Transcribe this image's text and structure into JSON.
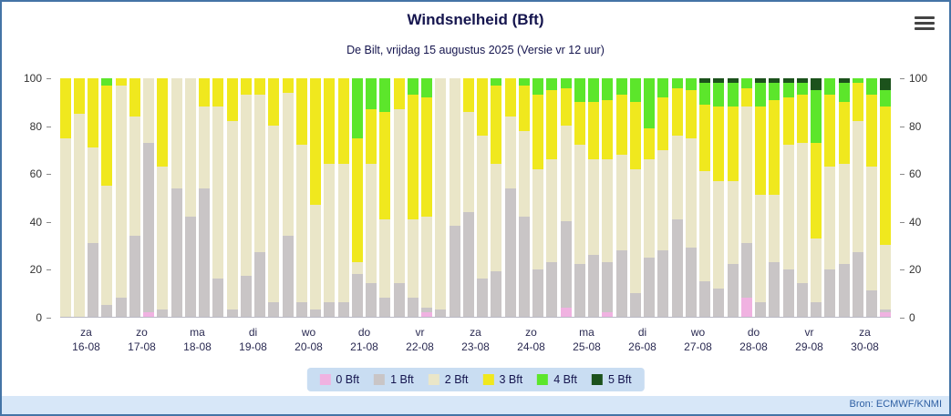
{
  "footer": {
    "source": "Bron: ECMWF/KNMI"
  },
  "chart_data": {
    "type": "bar",
    "stacked": true,
    "stacking": "percent",
    "title": "Windsnelheid (Bft)",
    "subtitle": "De Bilt, vrijdag 15 augustus 2025 (Versie vr 12 uur)",
    "xlabel": "",
    "ylabel": "",
    "ylim": [
      0,
      100
    ],
    "yticks": [
      0,
      20,
      40,
      60,
      80,
      100
    ],
    "grid": false,
    "legend_position": "bottom",
    "series_names": [
      "0 Bft",
      "1 Bft",
      "2 Bft",
      "3 Bft",
      "4 Bft",
      "5 Bft"
    ],
    "series_colors": [
      "#f0b2e1",
      "#c9c5c6",
      "#eae6c8",
      "#f0e81e",
      "#5ce62b",
      "#1c521c"
    ],
    "bar_value_order_note": "each bar is [pct 0 Bft, pct 1 Bft, pct 2 Bft, pct 3 Bft, pct 4 Bft, pct 5 Bft], four 6-hour bars per day",
    "days": [
      {
        "weekday": "za",
        "date": "16-08",
        "bars": [
          [
            0,
            0,
            75,
            25,
            0,
            0
          ],
          [
            0,
            0,
            85,
            15,
            0,
            0
          ],
          [
            0,
            31,
            40,
            29,
            0,
            0
          ],
          [
            0,
            5,
            50,
            42,
            3,
            0
          ]
        ]
      },
      {
        "weekday": "zo",
        "date": "17-08",
        "bars": [
          [
            0,
            8,
            89,
            3,
            0,
            0
          ],
          [
            0,
            34,
            50,
            16,
            0,
            0
          ],
          [
            2,
            71,
            27,
            0,
            0,
            0
          ],
          [
            0,
            3,
            60,
            37,
            0,
            0
          ]
        ]
      },
      {
        "weekday": "ma",
        "date": "18-08",
        "bars": [
          [
            0,
            54,
            46,
            0,
            0,
            0
          ],
          [
            0,
            42,
            58,
            0,
            0,
            0
          ],
          [
            0,
            54,
            34,
            12,
            0,
            0
          ],
          [
            0,
            16,
            72,
            12,
            0,
            0
          ]
        ]
      },
      {
        "weekday": "di",
        "date": "19-08",
        "bars": [
          [
            0,
            3,
            79,
            18,
            0,
            0
          ],
          [
            0,
            17,
            76,
            7,
            0,
            0
          ],
          [
            0,
            27,
            66,
            7,
            0,
            0
          ],
          [
            0,
            6,
            74,
            20,
            0,
            0
          ]
        ]
      },
      {
        "weekday": "wo",
        "date": "20-08",
        "bars": [
          [
            0,
            34,
            60,
            6,
            0,
            0
          ],
          [
            0,
            6,
            66,
            28,
            0,
            0
          ],
          [
            0,
            3,
            44,
            53,
            0,
            0
          ],
          [
            0,
            6,
            58,
            36,
            0,
            0
          ]
        ]
      },
      {
        "weekday": "do",
        "date": "21-08",
        "bars": [
          [
            0,
            6,
            58,
            36,
            0,
            0
          ],
          [
            0,
            18,
            5,
            52,
            25,
            0
          ],
          [
            0,
            14,
            50,
            23,
            13,
            0
          ],
          [
            0,
            8,
            33,
            45,
            14,
            0
          ]
        ]
      },
      {
        "weekday": "vr",
        "date": "22-08",
        "bars": [
          [
            0,
            14,
            73,
            13,
            0,
            0
          ],
          [
            0,
            8,
            33,
            52,
            7,
            0
          ],
          [
            2,
            2,
            38,
            50,
            8,
            0
          ],
          [
            0,
            3,
            97,
            0,
            0,
            0
          ]
        ]
      },
      {
        "weekday": "za",
        "date": "23-08",
        "bars": [
          [
            0,
            38,
            62,
            0,
            0,
            0
          ],
          [
            0,
            44,
            42,
            14,
            0,
            0
          ],
          [
            0,
            16,
            60,
            24,
            0,
            0
          ],
          [
            0,
            19,
            45,
            33,
            3,
            0
          ]
        ]
      },
      {
        "weekday": "zo",
        "date": "24-08",
        "bars": [
          [
            0,
            54,
            30,
            16,
            0,
            0
          ],
          [
            0,
            42,
            36,
            19,
            3,
            0
          ],
          [
            0,
            20,
            42,
            31,
            7,
            0
          ],
          [
            0,
            23,
            43,
            29,
            5,
            0
          ]
        ]
      },
      {
        "weekday": "ma",
        "date": "25-08",
        "bars": [
          [
            4,
            36,
            40,
            16,
            4,
            0
          ],
          [
            0,
            22,
            50,
            18,
            10,
            0
          ],
          [
            0,
            26,
            40,
            24,
            10,
            0
          ],
          [
            2,
            21,
            43,
            25,
            9,
            0
          ]
        ]
      },
      {
        "weekday": "di",
        "date": "26-08",
        "bars": [
          [
            0,
            28,
            40,
            25,
            7,
            0
          ],
          [
            0,
            10,
            52,
            28,
            10,
            0
          ],
          [
            0,
            25,
            41,
            13,
            21,
            0
          ],
          [
            0,
            28,
            42,
            22,
            8,
            0
          ]
        ]
      },
      {
        "weekday": "wo",
        "date": "27-08",
        "bars": [
          [
            0,
            41,
            35,
            20,
            4,
            0
          ],
          [
            0,
            29,
            46,
            20,
            5,
            0
          ],
          [
            0,
            15,
            46,
            28,
            9,
            2
          ],
          [
            0,
            12,
            45,
            31,
            10,
            2
          ]
        ]
      },
      {
        "weekday": "do",
        "date": "28-08",
        "bars": [
          [
            0,
            22,
            35,
            31,
            10,
            2
          ],
          [
            8,
            23,
            57,
            8,
            4,
            0
          ],
          [
            0,
            6,
            45,
            37,
            10,
            2
          ],
          [
            0,
            23,
            28,
            40,
            7,
            2
          ]
        ]
      },
      {
        "weekday": "vr",
        "date": "29-08",
        "bars": [
          [
            0,
            20,
            52,
            20,
            6,
            2
          ],
          [
            0,
            14,
            59,
            20,
            5,
            2
          ],
          [
            0,
            6,
            27,
            40,
            22,
            5
          ],
          [
            0,
            20,
            43,
            30,
            7,
            0
          ]
        ]
      },
      {
        "weekday": "za",
        "date": "30-08",
        "bars": [
          [
            0,
            22,
            42,
            26,
            8,
            2
          ],
          [
            0,
            27,
            55,
            16,
            2,
            0
          ],
          [
            0,
            11,
            52,
            30,
            7,
            0
          ],
          [
            2,
            1,
            27,
            58,
            7,
            5
          ]
        ]
      }
    ]
  }
}
